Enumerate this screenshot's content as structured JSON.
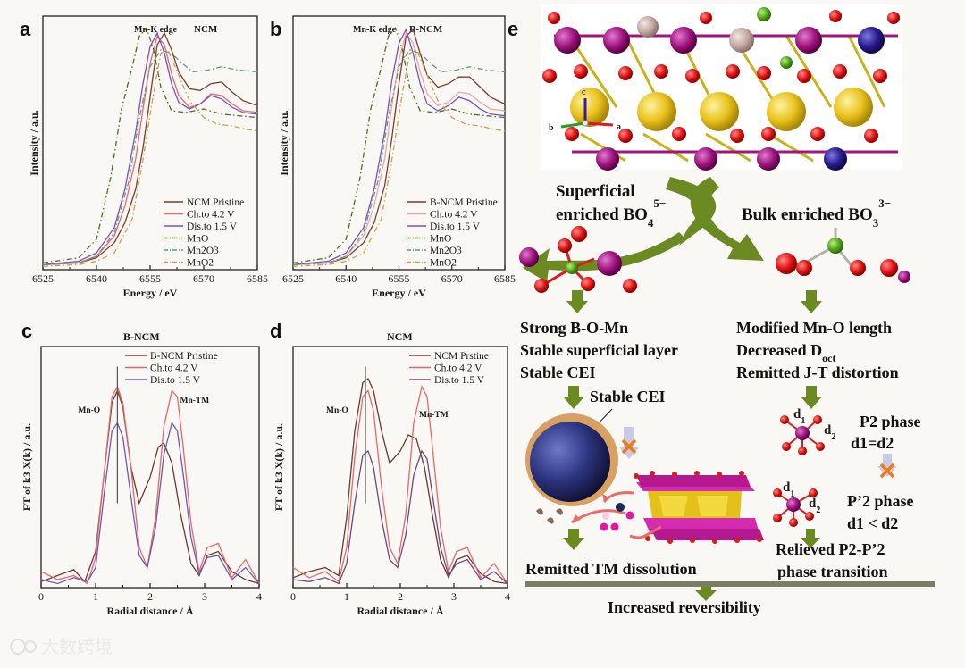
{
  "panels": {
    "a": {
      "letter": "a",
      "header_edge": "Mn-K edge",
      "header_sample": "NCM"
    },
    "b": {
      "letter": "b",
      "header_edge": "Mn-K edge",
      "header_sample": "B-NCM"
    },
    "c": {
      "letter": "c",
      "header_sample": "B-NCM"
    },
    "d": {
      "letter": "d",
      "header_sample": "NCM"
    },
    "e": {
      "letter": "e"
    }
  },
  "chart_data": [
    {
      "type": "line",
      "panel": "a",
      "title": "Mn-K edge NCM",
      "xlabel": "Energy / eV",
      "ylabel": "Intensity / a.u.",
      "xlim": [
        6525,
        6585
      ],
      "ylim": [
        0,
        1.5
      ],
      "xticks": [
        "6525",
        "6540",
        "6555",
        "6570",
        "6585"
      ],
      "series": [
        {
          "name": "NCM Pristine",
          "color": "#7a3b32",
          "dash": "solid",
          "x": [
            6525,
            6535,
            6540,
            6545,
            6548,
            6551,
            6553,
            6555,
            6557,
            6559,
            6561,
            6563,
            6566,
            6569,
            6572,
            6575,
            6578,
            6581,
            6585
          ],
          "y": [
            0.03,
            0.04,
            0.07,
            0.16,
            0.28,
            0.48,
            0.72,
            1.02,
            1.33,
            1.4,
            1.3,
            1.17,
            1.07,
            1.06,
            1.1,
            1.11,
            1.05,
            1.0,
            0.97
          ]
        },
        {
          "name": "Ch.to 4.2 V",
          "color": "#e5696a",
          "dash": "solid",
          "x": [
            6525,
            6535,
            6540,
            6545,
            6548,
            6551,
            6553,
            6555,
            6557,
            6559,
            6561,
            6563,
            6566,
            6569,
            6572,
            6575,
            6578,
            6581,
            6585
          ],
          "y": [
            0.03,
            0.04,
            0.08,
            0.2,
            0.38,
            0.66,
            0.95,
            1.22,
            1.38,
            1.33,
            1.16,
            1.03,
            0.96,
            0.98,
            1.04,
            1.03,
            0.98,
            0.94,
            0.93
          ]
        },
        {
          "name": "Dis.to 1.5 V",
          "color": "#7a52b8",
          "dash": "solid",
          "x": [
            6525,
            6535,
            6540,
            6545,
            6548,
            6551,
            6553,
            6555,
            6557,
            6559,
            6561,
            6563,
            6566,
            6569,
            6572,
            6575,
            6578,
            6581,
            6585
          ],
          "y": [
            0.03,
            0.05,
            0.1,
            0.25,
            0.48,
            0.82,
            1.1,
            1.32,
            1.4,
            1.28,
            1.1,
            0.99,
            0.95,
            0.98,
            1.03,
            1.01,
            0.96,
            0.93,
            0.92
          ]
        },
        {
          "name": "MnO",
          "color": "#4f6f22",
          "dash": "dashdot",
          "x": [
            6525,
            6535,
            6540,
            6544,
            6547,
            6550,
            6552,
            6554,
            6556,
            6558,
            6561,
            6565,
            6570,
            6575,
            6580,
            6585
          ],
          "y": [
            0.04,
            0.07,
            0.18,
            0.55,
            0.95,
            1.2,
            1.38,
            1.43,
            1.3,
            1.08,
            0.94,
            0.93,
            0.95,
            0.92,
            0.91,
            0.9
          ]
        },
        {
          "name": "Mn2O3",
          "color": "#5e9a8a",
          "dash": "dashdot",
          "x": [
            6525,
            6535,
            6540,
            6545,
            6549,
            6552,
            6555,
            6558,
            6561,
            6564,
            6567,
            6571,
            6575,
            6580,
            6585
          ],
          "y": [
            0.03,
            0.04,
            0.08,
            0.22,
            0.52,
            0.9,
            1.2,
            1.3,
            1.28,
            1.22,
            1.17,
            1.18,
            1.2,
            1.18,
            1.17
          ]
        },
        {
          "name": "MnO2",
          "color": "#c9a347",
          "dash": "dashdot",
          "x": [
            6525,
            6535,
            6540,
            6545,
            6550,
            6553,
            6556,
            6558,
            6560,
            6563,
            6566,
            6570,
            6574,
            6578,
            6582,
            6585
          ],
          "y": [
            0.02,
            0.03,
            0.05,
            0.1,
            0.3,
            0.65,
            1.05,
            1.28,
            1.3,
            1.15,
            1.0,
            0.9,
            0.86,
            0.85,
            0.83,
            0.82
          ]
        }
      ]
    },
    {
      "type": "line",
      "panel": "b",
      "title": "Mn-K edge B-NCM",
      "xlabel": "Energy / eV",
      "ylabel": "Intensity / a.u.",
      "xlim": [
        6525,
        6585
      ],
      "ylim": [
        0,
        1.5
      ],
      "xticks": [
        "6525",
        "6540",
        "6555",
        "6570",
        "6585"
      ],
      "series": [
        {
          "name": "B-NCM Pristine",
          "color": "#7a3b32",
          "dash": "solid",
          "x": [
            6525,
            6535,
            6540,
            6545,
            6548,
            6551,
            6553,
            6555,
            6557,
            6559,
            6561,
            6563,
            6566,
            6569,
            6572,
            6575,
            6578,
            6581,
            6585
          ],
          "y": [
            0.03,
            0.04,
            0.07,
            0.16,
            0.28,
            0.5,
            0.78,
            1.1,
            1.38,
            1.42,
            1.28,
            1.15,
            1.08,
            1.1,
            1.14,
            1.14,
            1.08,
            1.02,
            0.98
          ]
        },
        {
          "name": "Ch.to 4.2 V",
          "color": "#f0a6a6",
          "dash": "solid",
          "x": [
            6525,
            6535,
            6540,
            6545,
            6548,
            6551,
            6553,
            6555,
            6557,
            6559,
            6561,
            6563,
            6566,
            6569,
            6572,
            6575,
            6578,
            6581,
            6585
          ],
          "y": [
            0.03,
            0.04,
            0.08,
            0.2,
            0.38,
            0.66,
            0.97,
            1.24,
            1.4,
            1.34,
            1.17,
            1.04,
            0.97,
            0.99,
            1.05,
            1.04,
            0.99,
            0.95,
            0.94
          ]
        },
        {
          "name": "Dis.to 1.5 V",
          "color": "#7a52b8",
          "dash": "solid",
          "x": [
            6525,
            6535,
            6540,
            6545,
            6548,
            6551,
            6553,
            6555,
            6557,
            6559,
            6561,
            6563,
            6566,
            6569,
            6572,
            6575,
            6578,
            6581,
            6585
          ],
          "y": [
            0.03,
            0.05,
            0.1,
            0.25,
            0.48,
            0.82,
            1.12,
            1.34,
            1.42,
            1.28,
            1.1,
            0.98,
            0.94,
            0.97,
            1.02,
            1.0,
            0.95,
            0.92,
            0.91
          ]
        },
        {
          "name": "MnO",
          "color": "#4f6f22",
          "dash": "dashdot",
          "x": [
            6525,
            6535,
            6540,
            6544,
            6547,
            6550,
            6552,
            6554,
            6556,
            6558,
            6561,
            6565,
            6570,
            6575,
            6580,
            6585
          ],
          "y": [
            0.04,
            0.07,
            0.18,
            0.55,
            0.95,
            1.2,
            1.38,
            1.43,
            1.3,
            1.08,
            0.94,
            0.93,
            0.95,
            0.92,
            0.91,
            0.9
          ]
        },
        {
          "name": "Mn2O3",
          "color": "#5e9a8a",
          "dash": "dashdot",
          "x": [
            6525,
            6535,
            6540,
            6545,
            6549,
            6552,
            6555,
            6558,
            6561,
            6564,
            6567,
            6571,
            6575,
            6580,
            6585
          ],
          "y": [
            0.03,
            0.04,
            0.08,
            0.22,
            0.52,
            0.9,
            1.2,
            1.3,
            1.28,
            1.22,
            1.17,
            1.18,
            1.2,
            1.18,
            1.17
          ]
        },
        {
          "name": "MnO2",
          "color": "#c9a347",
          "dash": "dashdot",
          "x": [
            6525,
            6535,
            6540,
            6545,
            6550,
            6553,
            6556,
            6558,
            6560,
            6563,
            6566,
            6570,
            6574,
            6578,
            6582,
            6585
          ],
          "y": [
            0.02,
            0.03,
            0.05,
            0.1,
            0.3,
            0.65,
            1.05,
            1.28,
            1.3,
            1.15,
            1.0,
            0.9,
            0.86,
            0.85,
            0.83,
            0.82
          ]
        }
      ]
    },
    {
      "type": "line",
      "panel": "c",
      "title": "B-NCM",
      "xlabel": "Radial distance / Å",
      "ylabel": "FT of k3 X(k) / a.u.",
      "xlim": [
        0,
        4
      ],
      "ylim": [
        0,
        1.2
      ],
      "xticks": [
        "0",
        "1",
        "2",
        "3",
        "4"
      ],
      "annotations": [
        "Mn-O",
        "Mn-TM"
      ],
      "series": [
        {
          "name": "B-NCM Pristine",
          "color": "#6b3a30",
          "dash": "solid",
          "x": [
            0,
            0.3,
            0.6,
            0.8,
            1.0,
            1.15,
            1.3,
            1.4,
            1.5,
            1.65,
            1.8,
            2.0,
            2.15,
            2.25,
            2.4,
            2.55,
            2.75,
            2.9,
            3.05,
            3.25,
            3.5,
            3.75,
            4.0
          ],
          "y": [
            0.03,
            0.06,
            0.09,
            0.03,
            0.18,
            0.55,
            0.92,
            0.98,
            0.9,
            0.6,
            0.42,
            0.55,
            0.7,
            0.72,
            0.62,
            0.38,
            0.12,
            0.06,
            0.16,
            0.18,
            0.08,
            0.04,
            0.02
          ]
        },
        {
          "name": "Ch.to 4.2 V",
          "color": "#e5696a",
          "dash": "solid",
          "x": [
            0,
            0.3,
            0.6,
            0.85,
            1.0,
            1.15,
            1.3,
            1.4,
            1.5,
            1.65,
            1.8,
            1.95,
            2.1,
            2.25,
            2.4,
            2.5,
            2.6,
            2.75,
            2.9,
            3.05,
            3.25,
            3.5,
            3.75,
            4.0
          ],
          "y": [
            0.08,
            0.04,
            0.06,
            0.02,
            0.15,
            0.55,
            0.95,
            1.0,
            0.92,
            0.6,
            0.2,
            0.1,
            0.35,
            0.8,
            0.98,
            0.95,
            0.72,
            0.32,
            0.08,
            0.2,
            0.22,
            0.05,
            0.14,
            0.02
          ]
        },
        {
          "name": "Dis.to 1.5 V",
          "color": "#7159b3",
          "dash": "solid",
          "x": [
            0,
            0.3,
            0.6,
            0.85,
            1.0,
            1.15,
            1.3,
            1.4,
            1.5,
            1.65,
            1.8,
            1.95,
            2.1,
            2.25,
            2.4,
            2.5,
            2.6,
            2.75,
            2.9,
            3.05,
            3.25,
            3.5,
            3.75,
            4.0
          ],
          "y": [
            0.04,
            0.02,
            0.05,
            0.03,
            0.1,
            0.45,
            0.78,
            0.82,
            0.75,
            0.45,
            0.16,
            0.1,
            0.3,
            0.66,
            0.82,
            0.78,
            0.58,
            0.25,
            0.07,
            0.15,
            0.16,
            0.04,
            0.1,
            0.02
          ]
        }
      ]
    },
    {
      "type": "line",
      "panel": "d",
      "title": "NCM",
      "xlabel": "Radial distance / Å",
      "ylabel": "FT of k3 X(k) / a.u.",
      "xlim": [
        0,
        4
      ],
      "ylim": [
        0,
        1.2
      ],
      "xticks": [
        "0",
        "1",
        "2",
        "3",
        "4"
      ],
      "annotations": [
        "Mn-O",
        "Mn-TM"
      ],
      "series": [
        {
          "name": "NCM Prstine",
          "color": "#6b3a30",
          "dash": "solid",
          "x": [
            0,
            0.3,
            0.6,
            0.85,
            1.0,
            1.15,
            1.3,
            1.4,
            1.5,
            1.65,
            1.8,
            2.0,
            2.15,
            2.3,
            2.45,
            2.6,
            2.75,
            2.9,
            3.05,
            3.25,
            3.5,
            3.75,
            4.0
          ],
          "y": [
            0.05,
            0.08,
            0.1,
            0.06,
            0.35,
            0.78,
            1.02,
            1.04,
            0.98,
            0.78,
            0.62,
            0.68,
            0.76,
            0.74,
            0.6,
            0.36,
            0.14,
            0.05,
            0.14,
            0.16,
            0.07,
            0.03,
            0.02
          ]
        },
        {
          "name": "Ch.to 4.2 V",
          "color": "#e5696a",
          "dash": "solid",
          "x": [
            0,
            0.3,
            0.6,
            0.85,
            1.0,
            1.15,
            1.3,
            1.4,
            1.5,
            1.65,
            1.8,
            1.95,
            2.1,
            2.25,
            2.4,
            2.5,
            2.6,
            2.75,
            2.9,
            3.05,
            3.25,
            3.5,
            3.75,
            4.0
          ],
          "y": [
            0.1,
            0.05,
            0.08,
            0.03,
            0.2,
            0.65,
            0.95,
            0.98,
            0.88,
            0.5,
            0.2,
            0.12,
            0.36,
            0.82,
            1.0,
            0.95,
            0.7,
            0.3,
            0.08,
            0.18,
            0.2,
            0.05,
            0.12,
            0.02
          ]
        },
        {
          "name": "Dis.to 1.5 V",
          "color": "#6e4a7c",
          "dash": "solid",
          "x": [
            0,
            0.3,
            0.6,
            0.85,
            1.0,
            1.15,
            1.3,
            1.4,
            1.5,
            1.65,
            1.8,
            1.95,
            2.1,
            2.25,
            2.4,
            2.5,
            2.6,
            2.75,
            2.9,
            3.05,
            3.25,
            3.5,
            3.75,
            4.0
          ],
          "y": [
            0.04,
            0.03,
            0.05,
            0.02,
            0.12,
            0.42,
            0.66,
            0.68,
            0.6,
            0.34,
            0.14,
            0.1,
            0.26,
            0.56,
            0.68,
            0.64,
            0.46,
            0.2,
            0.06,
            0.12,
            0.14,
            0.04,
            0.08,
            0.02
          ]
        }
      ]
    }
  ],
  "schematic": {
    "left_title_line1": "Superficial",
    "left_title_line2": "enriched BO",
    "left_title_sub": "4",
    "left_title_sup": "5−",
    "right_title": "Bulk enriched BO",
    "right_title_sub": "3",
    "right_title_sup": "3−",
    "axis_a": "a",
    "axis_b": "b",
    "axis_c": "c",
    "left_points": [
      "Strong B-O-Mn",
      "Stable superficial layer",
      "Stable CEI"
    ],
    "stable_cei": "Stable CEI",
    "right_points": [
      "Modified Mn-O length",
      "Decreased D",
      "Remitted J-T distortion"
    ],
    "d_oct_sub": "oct",
    "d1_label": "d",
    "d1_sub": "1",
    "d2_label": "d",
    "d2_sub": "2",
    "p2_phase": "P2 phase",
    "p2_relation": "d1=d2",
    "p2p_phase": "P’2 phase",
    "p2p_relation": "d1 < d2",
    "relieved_line1": "Relieved P2-P’2",
    "relieved_line2": "phase transition",
    "remitted_tm": "Remitted TM dissolution",
    "increased": "Increased reversibility"
  },
  "watermark": "大数跨境",
  "colors": {
    "arrow_green": "#6b8a22",
    "axis": "#222222"
  }
}
